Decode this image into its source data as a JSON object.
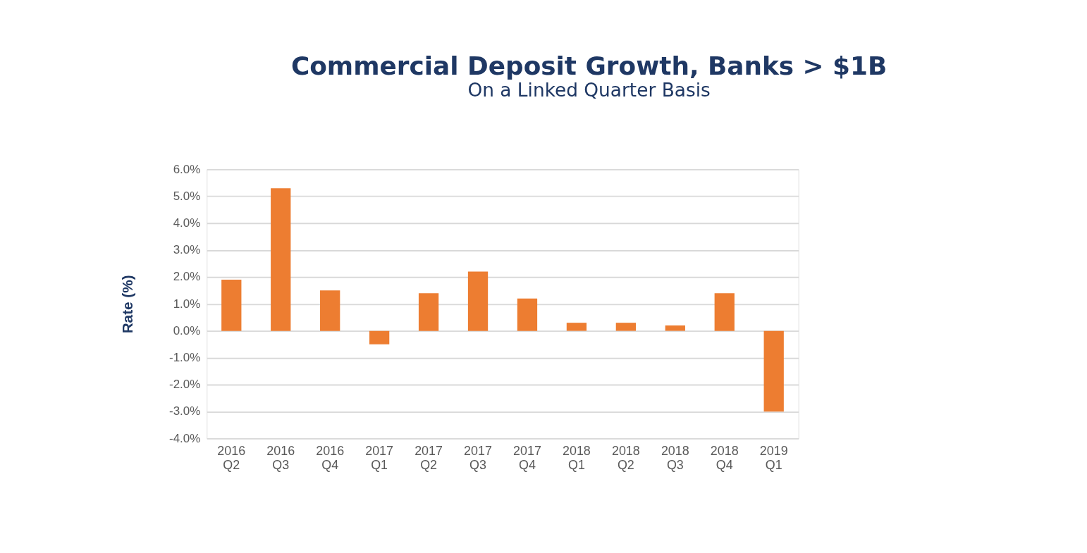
{
  "chart_data": {
    "type": "bar",
    "title": "Commercial Deposit Growth, Banks > $1B",
    "subtitle": "On a Linked Quarter Basis",
    "ylabel": "Rate (%)",
    "categories": [
      "2016 Q2",
      "2016 Q3",
      "2016 Q4",
      "2017 Q1",
      "2017 Q2",
      "2017 Q3",
      "2017 Q4",
      "2018 Q1",
      "2018 Q2",
      "2018 Q3",
      "2018 Q4",
      "2019 Q1"
    ],
    "values": [
      1.9,
      5.3,
      1.5,
      -0.5,
      1.4,
      2.2,
      1.2,
      0.3,
      0.3,
      0.2,
      1.4,
      -3.0
    ],
    "color": "#ed7d31",
    "ylim": [
      -4,
      6
    ],
    "yticks": [
      {
        "value": -4,
        "label": "-4.0%"
      },
      {
        "value": -3,
        "label": "-3.0%"
      },
      {
        "value": -2,
        "label": "-2.0%"
      },
      {
        "value": -1,
        "label": "-1.0%"
      },
      {
        "value": 0,
        "label": "0.0%"
      },
      {
        "value": 1,
        "label": "1.0%"
      },
      {
        "value": 2,
        "label": "2.0%"
      },
      {
        "value": 3,
        "label": "3.0%"
      },
      {
        "value": 4,
        "label": "4.0%"
      },
      {
        "value": 5,
        "label": "5.0%"
      },
      {
        "value": 6,
        "label": "6.0%"
      }
    ],
    "grid": "y"
  }
}
